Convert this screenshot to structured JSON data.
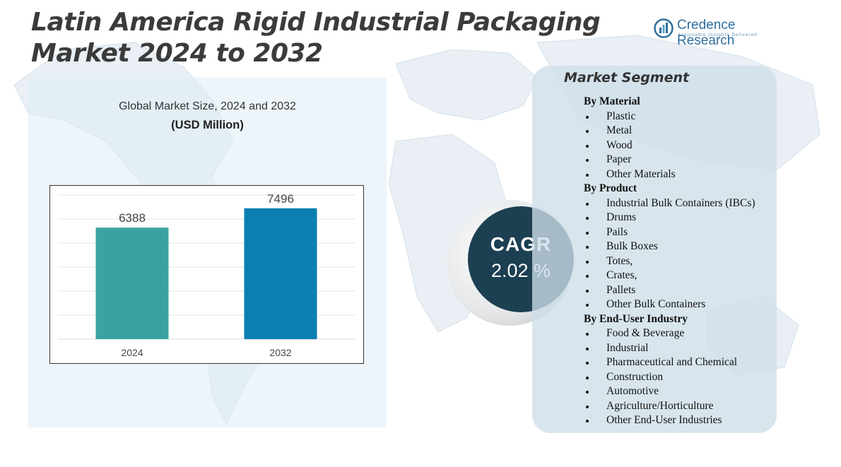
{
  "header": {
    "title_line1": "Latin America Rigid Industrial Packaging",
    "title_line2": "Market  2024 to 2032"
  },
  "logo": {
    "name": "Credence Research",
    "tagline": "Actionable Insights Delivered",
    "icon": "bar-chart-logo-icon"
  },
  "chart_data": {
    "type": "bar",
    "title": "Global Market Size,  2024 and 2032",
    "subtitle": "(USD Million)",
    "categories": [
      "2024",
      "2032"
    ],
    "values": [
      6388,
      7496
    ],
    "colors": [
      "#3aa3a0",
      "#0b7fb0"
    ],
    "ylim": [
      0,
      8500
    ],
    "grid": true,
    "xlabel": "",
    "ylabel": ""
  },
  "cagr": {
    "label": "CAGR",
    "value": "2.02 %"
  },
  "segments": {
    "title": "Market Segment",
    "groups": [
      {
        "heading": "By Material",
        "items": [
          "Plastic",
          "Metal",
          "Wood",
          "Paper",
          "Other Materials"
        ]
      },
      {
        "heading": "By Product",
        "items": [
          "Industrial Bulk Containers (IBCs)",
          "Drums",
          "Pails",
          "Bulk Boxes",
          "Totes,",
          "Crates,",
          "Pallets",
          "Other Bulk  Containers"
        ]
      },
      {
        "heading": "By End-User Industry",
        "items": [
          "Food & Beverage",
          "Industrial",
          "Pharmaceutical  and Chemical",
          "Construction",
          "Automotive",
          "Agriculture/Horticulture",
          "Other End-User Industries"
        ]
      }
    ]
  }
}
